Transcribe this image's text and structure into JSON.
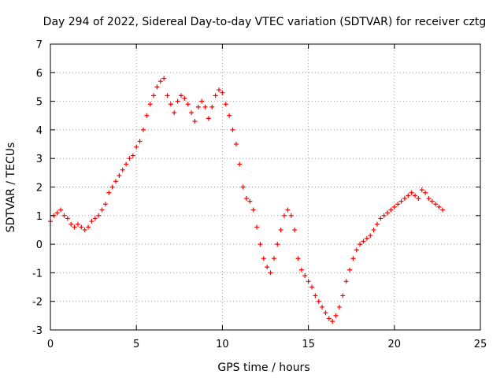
{
  "chart_data": {
    "type": "scatter",
    "title": "Day 294 of 2022, Sidereal Day-to-day VTEC variation (SDTVAR) for receiver cztg",
    "xlabel": "GPS time / hours",
    "ylabel": "SDTVAR / TECUs",
    "xlim": [
      0,
      25
    ],
    "ylim": [
      -3,
      7
    ],
    "xticks": [
      "0",
      "5",
      "10",
      "15",
      "20",
      "25"
    ],
    "yticks": [
      "-3",
      "-2",
      "-1",
      "0",
      "1",
      "2",
      "3",
      "4",
      "5",
      "6",
      "7"
    ],
    "grid": true,
    "marker": "+",
    "color": "#ff0000",
    "series": [
      {
        "name": "SDTVAR",
        "x": [
          0.0,
          0.2,
          0.4,
          0.6,
          0.8,
          1.0,
          1.2,
          1.4,
          1.6,
          1.8,
          2.0,
          2.2,
          2.4,
          2.6,
          2.8,
          3.0,
          3.2,
          3.4,
          3.6,
          3.8,
          4.0,
          4.2,
          4.4,
          4.6,
          4.8,
          5.0,
          5.2,
          5.4,
          5.6,
          5.8,
          6.0,
          6.2,
          6.4,
          6.6,
          6.8,
          7.0,
          7.2,
          7.4,
          7.6,
          7.8,
          8.0,
          8.2,
          8.4,
          8.6,
          8.8,
          9.0,
          9.2,
          9.4,
          9.6,
          9.8,
          10.0,
          10.2,
          10.4,
          10.6,
          10.8,
          11.0,
          11.2,
          11.4,
          11.6,
          11.8,
          12.0,
          12.2,
          12.4,
          12.6,
          12.8,
          13.0,
          13.2,
          13.4,
          13.6,
          13.8,
          14.0,
          14.2,
          14.4,
          14.6,
          14.8,
          15.0,
          15.2,
          15.4,
          15.6,
          15.8,
          16.0,
          16.2,
          16.4,
          16.6,
          16.8,
          17.0,
          17.2,
          17.4,
          17.6,
          17.8,
          18.0,
          18.2,
          18.4,
          18.6,
          18.8,
          19.0,
          19.2,
          19.4,
          19.6,
          19.8,
          20.0,
          20.2,
          20.4,
          20.6,
          20.8,
          21.0,
          21.2,
          21.4,
          21.6,
          21.8,
          22.0,
          22.2,
          22.4,
          22.6,
          22.8
        ],
        "y": [
          0.8,
          1.0,
          1.1,
          1.2,
          1.0,
          0.9,
          0.7,
          0.6,
          0.7,
          0.6,
          0.5,
          0.6,
          0.8,
          0.9,
          1.0,
          1.2,
          1.4,
          1.8,
          2.0,
          2.2,
          2.4,
          2.6,
          2.8,
          3.0,
          3.1,
          3.4,
          3.6,
          4.0,
          4.5,
          4.9,
          5.2,
          5.5,
          5.7,
          5.8,
          5.2,
          4.9,
          4.6,
          5.0,
          5.2,
          5.1,
          4.9,
          4.6,
          4.3,
          4.8,
          5.0,
          4.8,
          4.4,
          4.8,
          5.2,
          5.4,
          5.3,
          4.9,
          4.5,
          4.0,
          3.5,
          2.8,
          2.0,
          1.6,
          1.5,
          1.2,
          0.6,
          0.0,
          -0.5,
          -0.8,
          -1.0,
          -0.5,
          0.0,
          0.5,
          1.0,
          1.2,
          1.0,
          0.5,
          -0.5,
          -0.9,
          -1.1,
          -1.3,
          -1.5,
          -1.8,
          -2.0,
          -2.2,
          -2.4,
          -2.6,
          -2.7,
          -2.5,
          -2.2,
          -1.8,
          -1.3,
          -0.9,
          -0.5,
          -0.2,
          0.0,
          0.1,
          0.2,
          0.3,
          0.5,
          0.7,
          0.9,
          1.0,
          1.1,
          1.2,
          1.3,
          1.4,
          1.5,
          1.6,
          1.7,
          1.8,
          1.7,
          1.6,
          1.9,
          1.8,
          1.6,
          1.5,
          1.4,
          1.3,
          1.2
        ]
      }
    ]
  }
}
